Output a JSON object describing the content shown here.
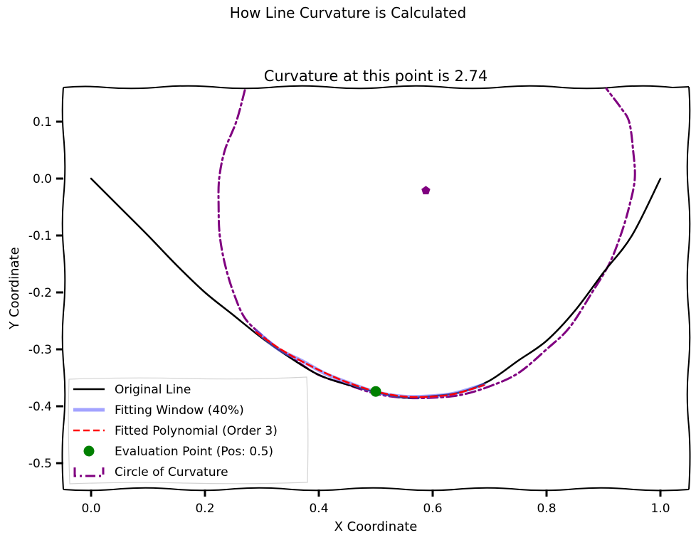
{
  "figure": {
    "suptitle": "How Line Curvature is Calculated"
  },
  "chart_data": {
    "type": "line",
    "title": "Curvature at this point is 2.74",
    "xlabel": "X Coordinate",
    "ylabel": "Y Coordinate",
    "xlim": [
      -0.05,
      1.05
    ],
    "ylim": [
      -0.545,
      0.16
    ],
    "xticks": [
      {
        "value": 0.0,
        "label": "0.0"
      },
      {
        "value": 0.2,
        "label": "0.2"
      },
      {
        "value": 0.4,
        "label": "0.4"
      },
      {
        "value": 0.6,
        "label": "0.6"
      },
      {
        "value": 0.8,
        "label": "0.8"
      },
      {
        "value": 1.0,
        "label": "1.0"
      }
    ],
    "yticks": [
      {
        "value": 0.1,
        "label": "0.1"
      },
      {
        "value": 0.0,
        "label": "0.0"
      },
      {
        "value": -0.1,
        "label": "-0.1"
      },
      {
        "value": -0.2,
        "label": "-0.2"
      },
      {
        "value": -0.3,
        "label": "-0.3"
      },
      {
        "value": -0.4,
        "label": "-0.4"
      },
      {
        "value": -0.5,
        "label": "-0.5"
      }
    ],
    "grid": false,
    "legend_position": "lower-left",
    "series": [
      {
        "name": "Original Line",
        "color": "#000000",
        "style": "solid",
        "x": [
          0.0,
          0.05,
          0.1,
          0.15,
          0.2,
          0.25,
          0.3,
          0.35,
          0.4,
          0.45,
          0.5,
          0.55,
          0.6,
          0.65,
          0.7,
          0.75,
          0.8,
          0.85,
          0.9,
          0.95,
          1.0
        ],
        "y": [
          0.0,
          -0.05,
          -0.1,
          -0.152,
          -0.2,
          -0.24,
          -0.28,
          -0.315,
          -0.345,
          -0.362,
          -0.375,
          -0.385,
          -0.382,
          -0.375,
          -0.355,
          -0.32,
          -0.285,
          -0.232,
          -0.165,
          -0.1,
          0.0
        ]
      },
      {
        "name": "Fitting Window (40%)",
        "color": "#6666ff",
        "style": "solid-thick",
        "x": [
          0.29,
          0.33,
          0.37,
          0.41,
          0.45,
          0.5,
          0.55,
          0.6,
          0.64,
          0.69
        ],
        "y": [
          -0.268,
          -0.3,
          -0.32,
          -0.342,
          -0.358,
          -0.375,
          -0.383,
          -0.382,
          -0.377,
          -0.362
        ]
      },
      {
        "name": "Fitted Polynomial (Order 3)",
        "color": "#ff0000",
        "style": "dashed",
        "x": [
          0.29,
          0.33,
          0.37,
          0.41,
          0.45,
          0.5,
          0.55,
          0.6,
          0.64,
          0.69
        ],
        "y": [
          -0.27,
          -0.298,
          -0.321,
          -0.341,
          -0.358,
          -0.374,
          -0.383,
          -0.383,
          -0.378,
          -0.363
        ]
      },
      {
        "name": "Evaluation Point (Pos: 0.5)",
        "color": "#008000",
        "style": "marker",
        "x": [
          0.5
        ],
        "y": [
          -0.374
        ]
      },
      {
        "name": "Circle of Curvature",
        "color": "#800080",
        "style": "dashdot",
        "x": [
          0.27,
          0.255,
          0.235,
          0.225,
          0.224,
          0.226,
          0.235,
          0.25,
          0.27,
          0.3,
          0.33,
          0.36,
          0.4,
          0.45,
          0.5,
          0.55,
          0.6,
          0.65,
          0.7,
          0.75,
          0.8,
          0.84,
          0.88,
          0.91,
          0.93,
          0.945,
          0.955,
          0.952,
          0.945,
          0.93,
          0.915,
          0.905
        ],
        "y": [
          0.155,
          0.1,
          0.05,
          0.0,
          -0.05,
          -0.1,
          -0.15,
          -0.2,
          -0.245,
          -0.275,
          -0.3,
          -0.32,
          -0.345,
          -0.362,
          -0.378,
          -0.385,
          -0.385,
          -0.38,
          -0.365,
          -0.342,
          -0.3,
          -0.262,
          -0.2,
          -0.15,
          -0.1,
          -0.05,
          0.0,
          0.05,
          0.1,
          0.125,
          0.145,
          0.158
        ]
      },
      {
        "name": "",
        "color": "#800080",
        "style": "center-marker",
        "x": [
          0.588
        ],
        "y": [
          -0.021
        ]
      }
    ]
  }
}
